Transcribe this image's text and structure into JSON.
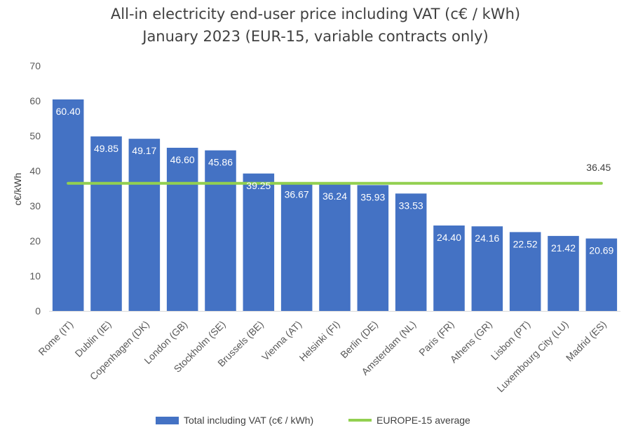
{
  "chart_data": {
    "type": "bar",
    "title": "All-in electricity end-user price including VAT (c€ / kWh)",
    "subtitle": "January 2023 (EUR-15, variable contracts only)",
    "ylabel": "c€/kWh",
    "xlabel": "",
    "ylim": [
      0,
      70
    ],
    "yticks": [
      0,
      10,
      20,
      30,
      40,
      50,
      60,
      70
    ],
    "grid": false,
    "legend_position": "bottom",
    "categories": [
      "Rome (IT)",
      "Dublin (IE)",
      "Copenhagen (DK)",
      "London (GB)",
      "Stockholm (SE)",
      "Brussels (BE)",
      "Vienna (AT)",
      "Helsinki (FI)",
      "Berlin (DE)",
      "Amsterdam (NL)",
      "Paris (FR)",
      "Athens (GR)",
      "Lisbon (PT)",
      "Luxembourg City (LU)",
      "Madrid (ES)"
    ],
    "series": [
      {
        "name": "Total including VAT (c€ / kWh)",
        "type": "bar",
        "color": "#4472C4",
        "values": [
          60.4,
          49.85,
          49.17,
          46.6,
          45.86,
          39.25,
          36.67,
          36.24,
          35.93,
          33.53,
          24.4,
          24.16,
          22.52,
          21.42,
          20.69
        ],
        "labels": [
          "60.40",
          "49.85",
          "49.17",
          "46.60",
          "45.86",
          "39.25",
          "36.67",
          "36.24",
          "35.93",
          "33.53",
          "24.40",
          "24.16",
          "22.52",
          "21.42",
          "20.69"
        ]
      },
      {
        "name": "EUROPE-15 average",
        "type": "line",
        "color": "#92D050",
        "value": 36.45,
        "label": "36.45"
      }
    ]
  }
}
